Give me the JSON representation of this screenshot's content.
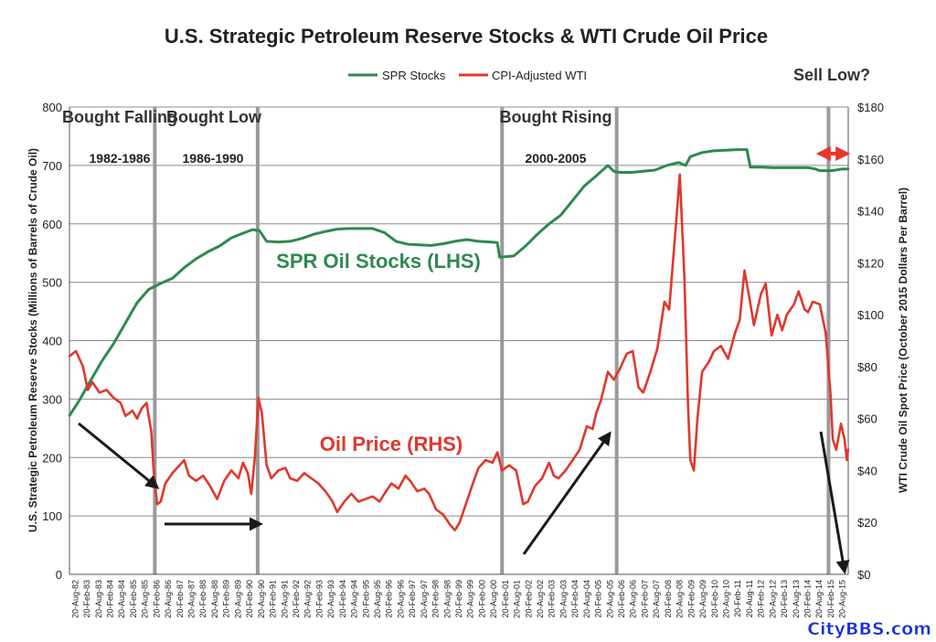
{
  "chart_data": {
    "type": "line",
    "title": "U.S. Strategic Petroleum Reserve Stocks & WTI Crude Oil Price",
    "ylabel_left": "U.S. Strategic Petroleum Reserve Stocks (Millions of Barrels of Crude Oil)",
    "ylabel_right": "WTI Crude Oil Spot Price (October 2015 Dollars Per Barrel)",
    "ylim_left": [
      0,
      800
    ],
    "ylim_right": [
      0,
      180
    ],
    "yticks_left": [
      "0",
      "100",
      "200",
      "300",
      "400",
      "500",
      "600",
      "700",
      "800"
    ],
    "yticks_right": [
      "$0",
      "$20",
      "$40",
      "$60",
      "$80",
      "$100",
      "$120",
      "$140",
      "$160",
      "$180"
    ],
    "x_range": [
      1982.625,
      1982.625,
      2015.708
    ],
    "x_tick_labels": [
      "20-Aug-82",
      "20-Feb-83",
      "20-Aug-83",
      "20-Feb-84",
      "20-Aug-84",
      "20-Feb-85",
      "20-Aug-85",
      "20-Feb-86",
      "20-Aug-86",
      "20-Feb-87",
      "20-Aug-87",
      "20-Feb-88",
      "20-Aug-88",
      "20-Feb-89",
      "20-Aug-89",
      "20-Feb-90",
      "20-Aug-90",
      "20-Feb-91",
      "20-Aug-91",
      "20-Feb-92",
      "20-Aug-92",
      "20-Feb-93",
      "20-Aug-93",
      "20-Feb-94",
      "20-Aug-94",
      "20-Feb-95",
      "20-Aug-95",
      "20-Feb-96",
      "20-Aug-96",
      "20-Feb-97",
      "20-Aug-97",
      "20-Feb-98",
      "20-Aug-98",
      "20-Feb-99",
      "20-Aug-99",
      "20-Feb-00",
      "20-Aug-00",
      "20-Feb-01",
      "20-Aug-01",
      "20-Feb-02",
      "20-Aug-02",
      "20-Feb-03",
      "20-Aug-03",
      "20-Feb-04",
      "20-Aug-04",
      "20-Feb-05",
      "20-Aug-05",
      "20-Feb-06",
      "20-Aug-06",
      "20-Feb-07",
      "20-Aug-07",
      "20-Feb-08",
      "20-Aug-08",
      "20-Feb-09",
      "20-Aug-09",
      "20-Feb-10",
      "20-Aug-10",
      "20-Feb-11",
      "20-Aug-11",
      "20-Feb-12",
      "20-Aug-12",
      "20-Feb-13",
      "20-Aug-13",
      "20-Feb-14",
      "20-Aug-14",
      "20-Feb-15",
      "20-Aug-15"
    ],
    "grid": true,
    "legend_position": "top-center",
    "series": [
      {
        "name": "SPR Stocks",
        "axis": "left",
        "color": "#2d8a4e",
        "points": [
          [
            1982.63,
            272
          ],
          [
            1983.0,
            295
          ],
          [
            1983.5,
            330
          ],
          [
            1984.0,
            365
          ],
          [
            1984.5,
            395
          ],
          [
            1985.0,
            430
          ],
          [
            1985.5,
            465
          ],
          [
            1986.0,
            488
          ],
          [
            1986.5,
            498
          ],
          [
            1987.0,
            507
          ],
          [
            1987.5,
            525
          ],
          [
            1988.0,
            540
          ],
          [
            1988.5,
            552
          ],
          [
            1989.0,
            562
          ],
          [
            1989.5,
            576
          ],
          [
            1990.0,
            584
          ],
          [
            1990.4,
            590
          ],
          [
            1990.7,
            588
          ],
          [
            1991.0,
            570
          ],
          [
            1991.5,
            569
          ],
          [
            1992.0,
            570
          ],
          [
            1992.5,
            575
          ],
          [
            1993.0,
            582
          ],
          [
            1993.5,
            587
          ],
          [
            1994.0,
            591
          ],
          [
            1994.5,
            592
          ],
          [
            1995.0,
            592
          ],
          [
            1995.5,
            592
          ],
          [
            1996.0,
            585
          ],
          [
            1996.5,
            570
          ],
          [
            1997.0,
            565
          ],
          [
            1997.5,
            564
          ],
          [
            1998.0,
            563
          ],
          [
            1998.5,
            566
          ],
          [
            1999.0,
            570
          ],
          [
            1999.5,
            573
          ],
          [
            2000.0,
            570
          ],
          [
            2000.5,
            569
          ],
          [
            2000.8,
            568
          ],
          [
            2000.9,
            543
          ],
          [
            2001.5,
            545
          ],
          [
            2002.0,
            562
          ],
          [
            2002.5,
            582
          ],
          [
            2003.0,
            600
          ],
          [
            2003.5,
            615
          ],
          [
            2004.0,
            640
          ],
          [
            2004.5,
            665
          ],
          [
            2005.0,
            682
          ],
          [
            2005.5,
            700
          ],
          [
            2005.75,
            690
          ],
          [
            2006.0,
            688
          ],
          [
            2006.5,
            688
          ],
          [
            2007.0,
            690
          ],
          [
            2007.5,
            692
          ],
          [
            2008.0,
            700
          ],
          [
            2008.5,
            705
          ],
          [
            2008.8,
            700
          ],
          [
            2009.0,
            715
          ],
          [
            2009.5,
            722
          ],
          [
            2010.0,
            725
          ],
          [
            2010.5,
            726
          ],
          [
            2011.0,
            727
          ],
          [
            2011.4,
            727
          ],
          [
            2011.55,
            697
          ],
          [
            2012.0,
            697
          ],
          [
            2012.5,
            696
          ],
          [
            2013.0,
            696
          ],
          [
            2013.5,
            696
          ],
          [
            2014.0,
            696
          ],
          [
            2014.3,
            694
          ],
          [
            2014.5,
            691
          ],
          [
            2015.0,
            691
          ],
          [
            2015.5,
            694
          ],
          [
            2015.7,
            694
          ]
        ]
      },
      {
        "name": "CPI-Adjusted WTI",
        "axis": "right",
        "color": "#e0382c",
        "points": [
          [
            1982.63,
            84
          ],
          [
            1982.9,
            86
          ],
          [
            1983.2,
            80
          ],
          [
            1983.4,
            71
          ],
          [
            1983.6,
            74
          ],
          [
            1983.9,
            70
          ],
          [
            1984.2,
            71
          ],
          [
            1984.5,
            68
          ],
          [
            1984.8,
            66
          ],
          [
            1985.0,
            61
          ],
          [
            1985.3,
            63
          ],
          [
            1985.5,
            60
          ],
          [
            1985.7,
            64
          ],
          [
            1985.9,
            66
          ],
          [
            1986.1,
            55
          ],
          [
            1986.2,
            40
          ],
          [
            1986.35,
            27
          ],
          [
            1986.5,
            28
          ],
          [
            1986.7,
            35
          ],
          [
            1987.0,
            39
          ],
          [
            1987.3,
            42
          ],
          [
            1987.5,
            44
          ],
          [
            1987.7,
            38
          ],
          [
            1988.0,
            36
          ],
          [
            1988.3,
            38
          ],
          [
            1988.6,
            34
          ],
          [
            1988.9,
            29
          ],
          [
            1989.2,
            36
          ],
          [
            1989.5,
            40
          ],
          [
            1989.8,
            37
          ],
          [
            1990.0,
            43
          ],
          [
            1990.2,
            39
          ],
          [
            1990.35,
            31
          ],
          [
            1990.5,
            45
          ],
          [
            1990.65,
            68
          ],
          [
            1990.8,
            62
          ],
          [
            1991.0,
            42
          ],
          [
            1991.2,
            37
          ],
          [
            1991.5,
            40
          ],
          [
            1991.8,
            41
          ],
          [
            1992.0,
            37
          ],
          [
            1992.3,
            36
          ],
          [
            1992.6,
            39
          ],
          [
            1992.9,
            37
          ],
          [
            1993.2,
            35
          ],
          [
            1993.5,
            32
          ],
          [
            1993.8,
            28
          ],
          [
            1994.0,
            24
          ],
          [
            1994.3,
            28
          ],
          [
            1994.6,
            31
          ],
          [
            1994.9,
            28
          ],
          [
            1995.2,
            29
          ],
          [
            1995.5,
            30
          ],
          [
            1995.8,
            28
          ],
          [
            1996.0,
            31
          ],
          [
            1996.3,
            35
          ],
          [
            1996.6,
            33
          ],
          [
            1996.9,
            38
          ],
          [
            1997.1,
            36
          ],
          [
            1997.4,
            32
          ],
          [
            1997.7,
            33
          ],
          [
            1997.9,
            31
          ],
          [
            1998.2,
            25
          ],
          [
            1998.5,
            23
          ],
          [
            1998.8,
            19
          ],
          [
            1999.0,
            17
          ],
          [
            1999.2,
            20
          ],
          [
            1999.5,
            28
          ],
          [
            1999.8,
            36
          ],
          [
            2000.0,
            41
          ],
          [
            2000.3,
            44
          ],
          [
            2000.6,
            43
          ],
          [
            2000.8,
            47
          ],
          [
            2001.0,
            40
          ],
          [
            2001.3,
            42
          ],
          [
            2001.6,
            40
          ],
          [
            2001.9,
            27
          ],
          [
            2002.1,
            28
          ],
          [
            2002.4,
            34
          ],
          [
            2002.7,
            37
          ],
          [
            2003.0,
            43
          ],
          [
            2003.2,
            38
          ],
          [
            2003.4,
            37
          ],
          [
            2003.7,
            40
          ],
          [
            2004.0,
            44
          ],
          [
            2004.3,
            48
          ],
          [
            2004.6,
            57
          ],
          [
            2004.85,
            56
          ],
          [
            2005.0,
            62
          ],
          [
            2005.2,
            67
          ],
          [
            2005.5,
            78
          ],
          [
            2005.75,
            75
          ],
          [
            2006.0,
            79
          ],
          [
            2006.3,
            85
          ],
          [
            2006.55,
            86
          ],
          [
            2006.8,
            72
          ],
          [
            2007.0,
            70
          ],
          [
            2007.3,
            78
          ],
          [
            2007.6,
            87
          ],
          [
            2007.9,
            105
          ],
          [
            2008.1,
            102
          ],
          [
            2008.4,
            136
          ],
          [
            2008.55,
            154
          ],
          [
            2008.75,
            114
          ],
          [
            2008.9,
            65
          ],
          [
            2009.0,
            44
          ],
          [
            2009.15,
            40
          ],
          [
            2009.3,
            60
          ],
          [
            2009.5,
            78
          ],
          [
            2009.8,
            82
          ],
          [
            2010.0,
            86
          ],
          [
            2010.3,
            88
          ],
          [
            2010.6,
            83
          ],
          [
            2010.9,
            93
          ],
          [
            2011.1,
            98
          ],
          [
            2011.3,
            117
          ],
          [
            2011.5,
            107
          ],
          [
            2011.7,
            96
          ],
          [
            2012.0,
            108
          ],
          [
            2012.2,
            112
          ],
          [
            2012.45,
            92
          ],
          [
            2012.7,
            100
          ],
          [
            2012.9,
            94
          ],
          [
            2013.1,
            100
          ],
          [
            2013.4,
            104
          ],
          [
            2013.6,
            109
          ],
          [
            2013.85,
            102
          ],
          [
            2014.0,
            101
          ],
          [
            2014.2,
            105
          ],
          [
            2014.5,
            104
          ],
          [
            2014.75,
            93
          ],
          [
            2014.95,
            70
          ],
          [
            2015.05,
            52
          ],
          [
            2015.2,
            48
          ],
          [
            2015.4,
            58
          ],
          [
            2015.55,
            52
          ],
          [
            2015.65,
            44
          ],
          [
            2015.7,
            48
          ]
        ]
      }
    ],
    "period_lines_x": [
      1986.25,
      1990.62,
      2001.0,
      2005.87,
      2014.87
    ],
    "annotations": {
      "bought_falling": {
        "title": "Bought Falling",
        "years": "1982-1986"
      },
      "bought_low": {
        "title": "Bought Low",
        "years": "1986-1990"
      },
      "bought_rising": {
        "title": "Bought Rising",
        "years": "2000-2005"
      },
      "sell_low": "Sell Low?",
      "spr_label": "SPR Oil Stocks (LHS)",
      "oil_label": "Oil Price (RHS)"
    }
  },
  "watermark": "CityBBS.com"
}
